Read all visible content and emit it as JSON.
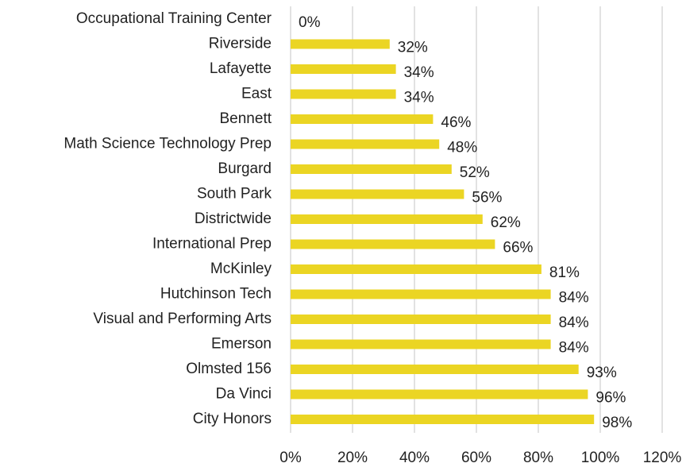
{
  "chart_data": {
    "type": "bar",
    "orientation": "horizontal",
    "categories": [
      "Occupational Training Center",
      "Riverside",
      "Lafayette",
      "East",
      "Bennett",
      "Math Science Technology Prep",
      "Burgard",
      "South Park",
      "Districtwide",
      "International Prep",
      "McKinley",
      "Hutchinson Tech",
      "Visual and Performing Arts",
      "Emerson",
      "Olmsted 156",
      "Da Vinci",
      "City Honors"
    ],
    "values": [
      0,
      32,
      34,
      34,
      46,
      48,
      52,
      56,
      62,
      66,
      81,
      84,
      84,
      84,
      93,
      96,
      98
    ],
    "value_labels": [
      "0%",
      "32%",
      "34%",
      "34%",
      "46%",
      "48%",
      "52%",
      "56%",
      "62%",
      "66%",
      "81%",
      "84%",
      "84%",
      "84%",
      "93%",
      "96%",
      "98%"
    ],
    "color": "#ebd523",
    "xlim": [
      0,
      120
    ],
    "xticks": [
      {
        "value": 0,
        "label": "0%"
      },
      {
        "value": 20,
        "label": "20%"
      },
      {
        "value": 40,
        "label": "40%"
      },
      {
        "value": 60,
        "label": "60%"
      },
      {
        "value": 80,
        "label": "80%"
      },
      {
        "value": 100,
        "label": "100%"
      },
      {
        "value": 120,
        "label": "120%"
      }
    ],
    "grid": true
  }
}
